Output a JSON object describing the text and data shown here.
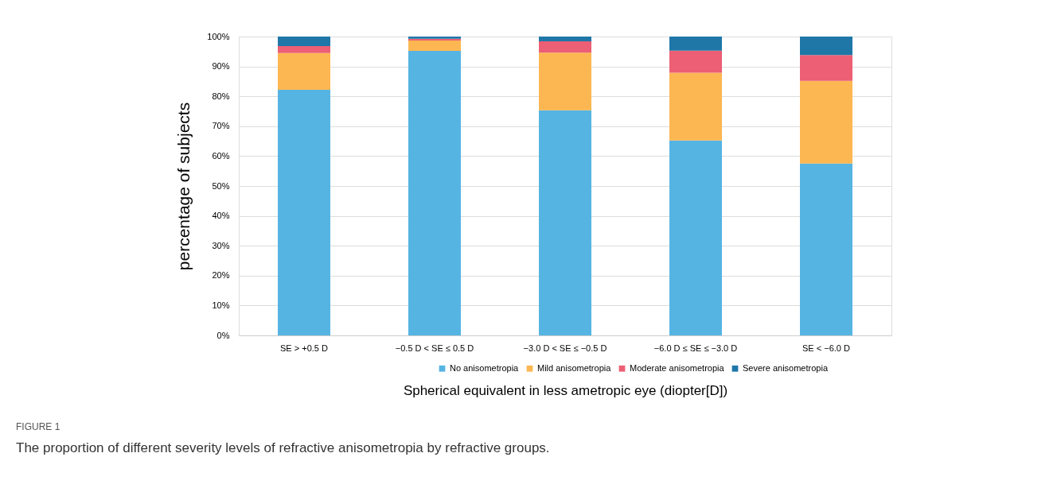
{
  "chart_data": {
    "type": "bar",
    "stacked": true,
    "xlabel": "Spherical equivalent in less ametropic eye (diopter[D])",
    "ylabel": "percentage of subjects",
    "categories": [
      "SE > +0.5 D",
      "−0.5 D < SE ≤ 0.5 D",
      "−3.0 D < SE ≤ −0.5 D",
      "−6.0 D ≤ SE ≤ −3.0 D",
      "SE < −6.0 D"
    ],
    "series": [
      {
        "name": "No anisometropia",
        "color": "#56b4e3",
        "values": [
          82.2,
          95.2,
          75.3,
          65.2,
          57.5
        ]
      },
      {
        "name": "Mild anisometropia",
        "color": "#fdb752",
        "values": [
          12.3,
          3.5,
          19.3,
          22.7,
          27.7
        ]
      },
      {
        "name": "Moderate anisometropia",
        "color": "#ec5f74",
        "values": [
          2.3,
          0.6,
          3.8,
          7.4,
          8.6
        ]
      },
      {
        "name": "Severe anisometropia",
        "color": "#1f77a8",
        "values": [
          3.2,
          0.7,
          1.6,
          4.7,
          6.2
        ]
      }
    ],
    "ylim": [
      0,
      100
    ],
    "yticks": [
      {
        "value": 0,
        "label": "0%"
      },
      {
        "value": 10,
        "label": "10%"
      },
      {
        "value": 20,
        "label": "20%"
      },
      {
        "value": 30,
        "label": "30%"
      },
      {
        "value": 40,
        "label": "40%"
      },
      {
        "value": 50,
        "label": "50%"
      },
      {
        "value": 60,
        "label": "60%"
      },
      {
        "value": 70,
        "label": "70%"
      },
      {
        "value": 80,
        "label": "80%"
      },
      {
        "value": 90,
        "label": "90%"
      },
      {
        "value": 100,
        "label": "100%"
      }
    ],
    "grid": "y",
    "legend": "bottom",
    "annotations": [
      "FIGURE 1",
      "The proportion of different severity levels of refractive anisometropia by refractive groups."
    ]
  }
}
